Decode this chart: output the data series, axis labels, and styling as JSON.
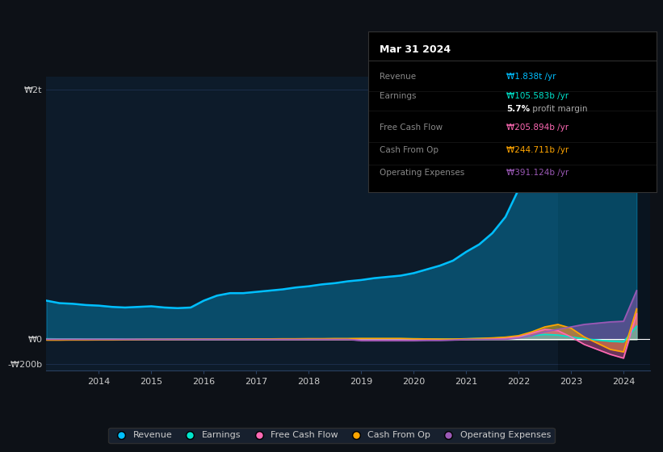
{
  "bg_color": "#0d1117",
  "plot_bg_color": "#0d1b2a",
  "grid_color": "#1e3050",
  "text_color": "#cccccc",
  "years": [
    2013.0,
    2013.25,
    2013.5,
    2013.75,
    2014.0,
    2014.25,
    2014.5,
    2014.75,
    2015.0,
    2015.25,
    2015.5,
    2015.75,
    2016.0,
    2016.25,
    2016.5,
    2016.75,
    2017.0,
    2017.25,
    2017.5,
    2017.75,
    2018.0,
    2018.25,
    2018.5,
    2018.75,
    2019.0,
    2019.25,
    2019.5,
    2019.75,
    2020.0,
    2020.25,
    2020.5,
    2020.75,
    2021.0,
    2021.25,
    2021.5,
    2021.75,
    2022.0,
    2022.25,
    2022.5,
    2022.75,
    2023.0,
    2023.25,
    2023.5,
    2023.75,
    2024.0,
    2024.25
  ],
  "revenue": [
    310,
    290,
    285,
    275,
    270,
    260,
    255,
    260,
    265,
    255,
    250,
    255,
    310,
    350,
    370,
    370,
    380,
    390,
    400,
    415,
    425,
    440,
    450,
    465,
    475,
    490,
    500,
    510,
    530,
    560,
    590,
    630,
    700,
    760,
    850,
    980,
    1200,
    1500,
    1800,
    1900,
    1850,
    1700,
    1600,
    1550,
    1650,
    1838
  ],
  "earnings": [
    5,
    4,
    4,
    3,
    3,
    3,
    2,
    2,
    2,
    2,
    2,
    2,
    2,
    2,
    3,
    3,
    3,
    4,
    4,
    4,
    4,
    4,
    5,
    5,
    5,
    5,
    5,
    5,
    5,
    4,
    4,
    3,
    5,
    8,
    10,
    15,
    20,
    30,
    40,
    35,
    20,
    5,
    -5,
    -15,
    -20,
    106
  ],
  "free_cash_flow": [
    0,
    0,
    0,
    0,
    0,
    0,
    0,
    0,
    0,
    0,
    0,
    0,
    0,
    0,
    0,
    0,
    0,
    0,
    0,
    0,
    0,
    0,
    0,
    0,
    -5,
    -5,
    -5,
    -5,
    -5,
    -3,
    -3,
    -2,
    0,
    2,
    5,
    10,
    20,
    50,
    80,
    70,
    20,
    -40,
    -80,
    -120,
    -150,
    206
  ],
  "cash_from_op": [
    -5,
    -5,
    -4,
    -4,
    -3,
    -3,
    -2,
    -1,
    0,
    0,
    1,
    1,
    2,
    2,
    3,
    3,
    4,
    4,
    5,
    5,
    6,
    6,
    7,
    7,
    8,
    8,
    8,
    8,
    5,
    4,
    3,
    3,
    5,
    8,
    12,
    18,
    30,
    60,
    100,
    120,
    90,
    20,
    -30,
    -80,
    -100,
    245
  ],
  "operating_expenses": [
    0,
    0,
    0,
    0,
    0,
    0,
    0,
    0,
    0,
    0,
    0,
    0,
    0,
    0,
    0,
    0,
    0,
    0,
    0,
    0,
    0,
    0,
    0,
    0,
    -10,
    -10,
    -10,
    -10,
    -10,
    -8,
    -8,
    -5,
    0,
    0,
    0,
    0,
    10,
    30,
    60,
    80,
    100,
    120,
    130,
    140,
    145,
    391
  ],
  "revenue_color": "#00bfff",
  "earnings_color": "#00e5cc",
  "fcf_color": "#ff69b4",
  "cashop_color": "#ffa500",
  "opex_color": "#9b59b6",
  "ylim": [
    -250,
    2100
  ],
  "yticks": [
    -200,
    0,
    2000
  ],
  "ytick_labels": [
    "-₩200b",
    "₩0",
    "₩2t"
  ],
  "xticks": [
    2014,
    2015,
    2016,
    2017,
    2018,
    2019,
    2020,
    2021,
    2022,
    2023,
    2024
  ],
  "legend_items": [
    "Revenue",
    "Earnings",
    "Free Cash Flow",
    "Cash From Op",
    "Operating Expenses"
  ],
  "legend_colors": [
    "#00bfff",
    "#00e5cc",
    "#ff69b4",
    "#ffa500",
    "#9b59b6"
  ],
  "tooltip": {
    "title": "Mar 31 2024",
    "rows": [
      {
        "label": "Revenue",
        "value": "₩1.838t /yr",
        "color": "#00bfff"
      },
      {
        "label": "Earnings",
        "value": "₩105.583b /yr",
        "color": "#00e5cc"
      },
      {
        "label": "",
        "value": "5.7% profit margin",
        "color": "#ffffff"
      },
      {
        "label": "Free Cash Flow",
        "value": "₩205.894b /yr",
        "color": "#ff69b4"
      },
      {
        "label": "Cash From Op",
        "value": "₩244.711b /yr",
        "color": "#ffa500"
      },
      {
        "label": "Operating Expenses",
        "value": "₩391.124b /yr",
        "color": "#9b59b6"
      }
    ]
  }
}
